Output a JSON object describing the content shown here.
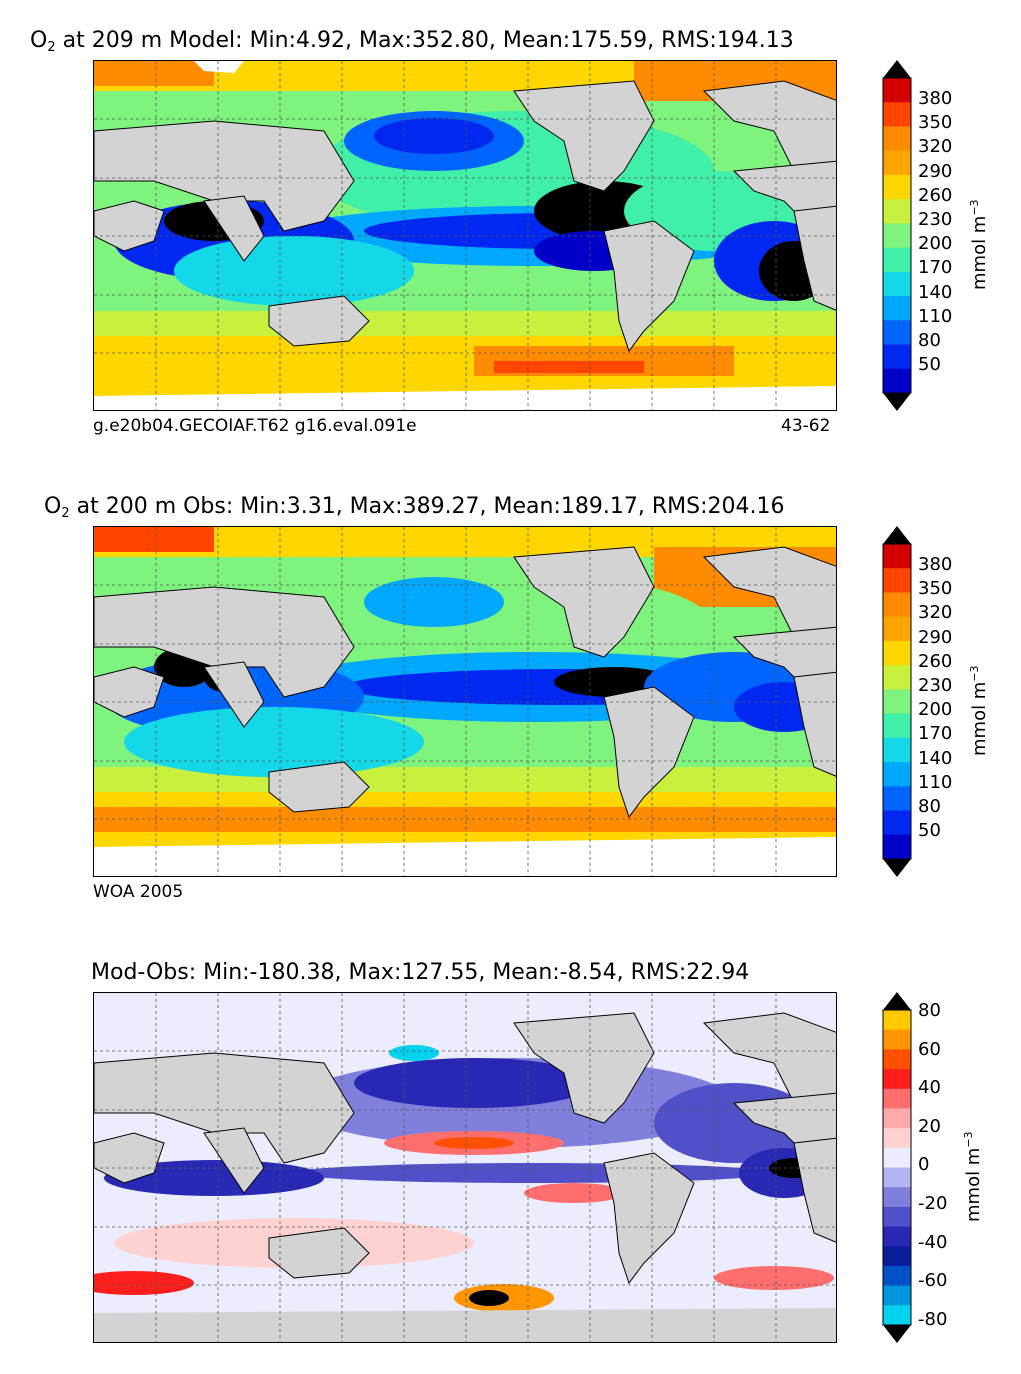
{
  "panels": [
    {
      "id": "model",
      "title_prefix": "O",
      "title_sub": "2",
      "title_rest": " at 209 m Model: Min:4.92, Max:352.80, Mean:175.59, RMS:194.13",
      "footer_left": "g.e20b04.GECOIAF.T62 g16.eval.091e",
      "footer_right": "43-62",
      "colorbar": {
        "ticks": [
          "380",
          "350",
          "320",
          "290",
          "260",
          "230",
          "200",
          "170",
          "140",
          "110",
          "80",
          "50"
        ],
        "units": "mmol m",
        "units_sup": "−3",
        "colors": [
          "#7f0000",
          "#d40000",
          "#ff4500",
          "#ff8c00",
          "#ffa500",
          "#ffd700",
          "#c8f03c",
          "#7ef47e",
          "#40f0a8",
          "#14d8e8",
          "#00a8ff",
          "#0064ff",
          "#0028f0",
          "#0000c8",
          "#00008c"
        ]
      }
    },
    {
      "id": "obs",
      "title_prefix": "O",
      "title_sub": "2",
      "title_rest": " at 200 m Obs: Min:3.31, Max:389.27, Mean:189.17, RMS:204.16",
      "footer_left": "WOA 2005",
      "footer_right": "",
      "colorbar": {
        "ticks": [
          "380",
          "350",
          "320",
          "290",
          "260",
          "230",
          "200",
          "170",
          "140",
          "110",
          "80",
          "50"
        ],
        "units": "mmol m",
        "units_sup": "−3",
        "colors": [
          "#7f0000",
          "#d40000",
          "#ff4500",
          "#ff8c00",
          "#ffa500",
          "#ffd700",
          "#c8f03c",
          "#7ef47e",
          "#40f0a8",
          "#14d8e8",
          "#00a8ff",
          "#0064ff",
          "#0028f0",
          "#0000c8",
          "#00008c"
        ]
      }
    },
    {
      "id": "diff",
      "title_prefix": "",
      "title_sub": "",
      "title_rest": "Mod-Obs: Min:-180.38, Max:127.55, Mean:-8.54, RMS:22.94",
      "footer_left": "",
      "footer_right": "",
      "colorbar": {
        "ticks": [
          "80",
          "60",
          "40",
          "20",
          "0",
          "-20",
          "-40",
          "-60",
          "-80"
        ],
        "units": "mmol m",
        "units_sup": "−3",
        "colors": [
          "#ffff00",
          "#ffc800",
          "#ff9600",
          "#ff5000",
          "#ff1e1e",
          "#ff6e6e",
          "#ffaaaa",
          "#ffd2d2",
          "#ececff",
          "#b4b4f0",
          "#8080dc",
          "#5050c8",
          "#2828b4",
          "#0a1e9a",
          "#0050c8",
          "#0096dc",
          "#00d2f0",
          "#00ffff"
        ]
      }
    }
  ],
  "colors": {
    "land": "#d3d3d3",
    "missing": "#ffffff",
    "grid": "#555555"
  }
}
